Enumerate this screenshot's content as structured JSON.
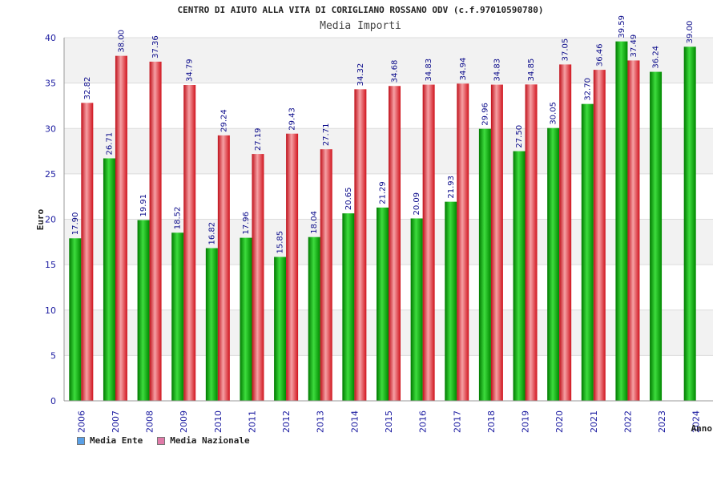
{
  "chart_data": {
    "type": "bar",
    "title": "CENTRO DI AIUTO ALLA VITA DI CORIGLIANO ROSSANO ODV (c.f.97010590780)",
    "subtitle": "Media Importi",
    "xlabel": "Anno",
    "ylabel": "Euro",
    "ylim": [
      0,
      40
    ],
    "yticks": [
      0,
      5,
      10,
      15,
      20,
      25,
      30,
      35,
      40
    ],
    "grid": true,
    "legend_position": "bottom-left",
    "categories": [
      "2006",
      "2007",
      "2008",
      "2009",
      "2010",
      "2011",
      "2012",
      "2013",
      "2014",
      "2015",
      "2016",
      "2017",
      "2018",
      "2019",
      "2020",
      "2021",
      "2022",
      "2023",
      "2024"
    ],
    "series": [
      {
        "name": "Media Ente",
        "color": "#00aa00",
        "legend_color": "#5aa0e6",
        "values": [
          17.9,
          26.71,
          19.91,
          18.52,
          16.82,
          17.96,
          15.85,
          18.04,
          20.65,
          21.29,
          20.09,
          21.93,
          29.96,
          27.5,
          30.05,
          32.7,
          39.59,
          36.24,
          39.0
        ]
      },
      {
        "name": "Media Nazionale",
        "color": "#e8202a",
        "legend_color": "#e07aa8",
        "values": [
          32.82,
          38.0,
          37.36,
          34.79,
          29.24,
          27.19,
          29.43,
          27.71,
          34.32,
          34.68,
          34.83,
          34.94,
          34.83,
          34.85,
          37.05,
          36.46,
          37.49,
          null,
          null
        ]
      }
    ]
  }
}
